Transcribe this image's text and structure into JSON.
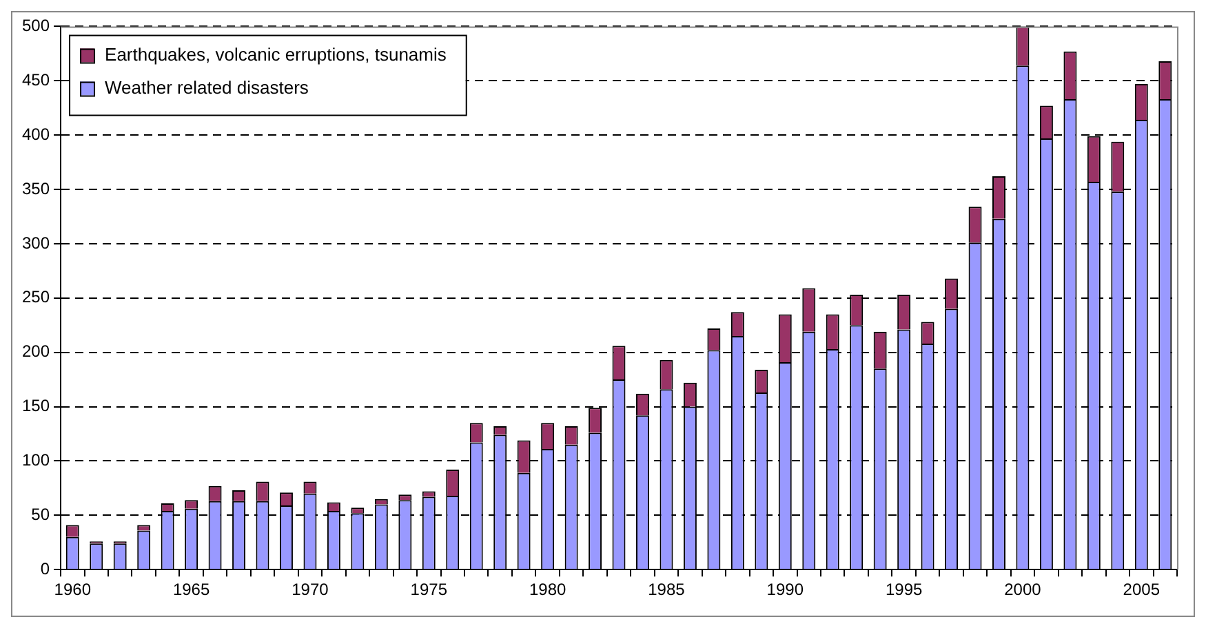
{
  "chart_data": {
    "type": "bar",
    "stacked": true,
    "categories": [
      "1960",
      null,
      null,
      null,
      null,
      "1965",
      null,
      null,
      null,
      null,
      "1970",
      null,
      null,
      null,
      null,
      "1975",
      null,
      null,
      null,
      null,
      "1980",
      null,
      null,
      null,
      null,
      "1985",
      null,
      null,
      null,
      null,
      "1990",
      null,
      null,
      null,
      null,
      "1995",
      null,
      null,
      null,
      null,
      "2000",
      null,
      null,
      null,
      null,
      "2005",
      null
    ],
    "series": [
      {
        "name": "Weather related disasters",
        "color": "#9999ff",
        "values": [
          30,
          24,
          24,
          36,
          54,
          56,
          63,
          63,
          63,
          59,
          70,
          54,
          52,
          60,
          64,
          67,
          68,
          117,
          124,
          89,
          111,
          115,
          126,
          175,
          142,
          166,
          150,
          202,
          215,
          163,
          191,
          219,
          203,
          225,
          185,
          221,
          208,
          240,
          301,
          323,
          464,
          397,
          433,
          357,
          348,
          414,
          433
        ]
      },
      {
        "name": "Earthquakes, volcanic erruptions, tsunamis",
        "color": "#993366",
        "values": [
          11,
          2,
          2,
          5,
          7,
          8,
          14,
          10,
          18,
          12,
          11,
          8,
          5,
          5,
          5,
          5,
          24,
          18,
          8,
          30,
          24,
          17,
          23,
          31,
          20,
          27,
          22,
          20,
          22,
          21,
          44,
          40,
          32,
          28,
          34,
          32,
          20,
          28,
          33,
          39,
          36,
          30,
          44,
          42,
          46,
          33,
          35
        ]
      }
    ],
    "ylim": [
      0,
      500
    ],
    "yticks": [
      0,
      50,
      100,
      150,
      200,
      250,
      300,
      350,
      400,
      450,
      500
    ],
    "grid": "y",
    "legend": "top left"
  }
}
